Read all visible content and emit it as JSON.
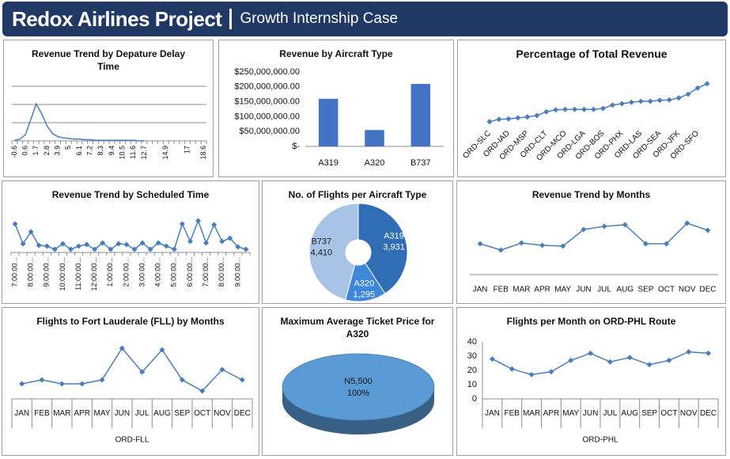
{
  "header": {
    "title": "Redox Airlines Project",
    "subtitle": "Growth Internship Case"
  },
  "chart_data": [
    {
      "type": "line",
      "title": "Revenue Trend by Depature Delay Time",
      "color": "#4a7ebb",
      "markers": false,
      "categories": [
        "-0.6",
        null,
        "0.6",
        null,
        "1.7",
        null,
        "2.8",
        null,
        "3.9",
        null,
        "5",
        null,
        "6.1",
        null,
        "7.2",
        null,
        "8.3",
        null,
        "9.4",
        null,
        "10.5",
        null,
        "11.6",
        null,
        "12.7",
        null,
        null,
        null,
        "14.9",
        null,
        null,
        null,
        "17",
        null,
        null,
        "18.6"
      ],
      "values": [
        1,
        3,
        10,
        35,
        61,
        45,
        25,
        12,
        7,
        5,
        4,
        3,
        3,
        2,
        2,
        1,
        1,
        1,
        1,
        1,
        1,
        1,
        1,
        0,
        0,
        null,
        null,
        null,
        null,
        null,
        null,
        null,
        null,
        null,
        null,
        null
      ],
      "ylim": [
        0,
        90
      ],
      "yticks": [
        30,
        60,
        90
      ],
      "grid": true,
      "ytick_labels": false
    },
    {
      "type": "bar",
      "title": "Revenue by Aircraft Type",
      "color": "#4472c4",
      "categories": [
        "A319",
        "A320",
        "B737"
      ],
      "values": [
        160000000,
        55000000,
        210000000
      ],
      "ylim": [
        0,
        250000000
      ],
      "yticks": [
        {
          "value": 0,
          "label": "$-"
        },
        {
          "value": 50000000,
          "label": "$50,000,000.00"
        },
        {
          "value": 100000000,
          "label": "$100,000,000.00"
        },
        {
          "value": 150000000,
          "label": "$150,000,000.00"
        },
        {
          "value": 200000000,
          "label": "$200,000,000.00"
        },
        {
          "value": 250000000,
          "label": "$250,000,000.00"
        }
      ],
      "grid": false
    },
    {
      "type": "line",
      "title": "Percentage of Total Revenue",
      "color": "#4a7ebb",
      "markers": true,
      "categories": [
        "ORD-SLC",
        null,
        "ORD-IAD",
        null,
        "ORD-MSP",
        null,
        "ORD-CLT",
        null,
        "ORD-MCO",
        null,
        "ORD-LGA",
        null,
        "ORD-BOS",
        null,
        "ORD-PHX",
        null,
        "ORD-LAS",
        null,
        "ORD-SEA",
        null,
        "ORD-JFK",
        null,
        "ORD-SFO",
        null
      ],
      "values": [
        1.2,
        1.7,
        1.8,
        2.0,
        2.2,
        2.5,
        3.3,
        3.7,
        3.8,
        3.8,
        3.8,
        3.8,
        4.0,
        4.7,
        5.0,
        5.3,
        5.5,
        5.5,
        5.7,
        5.8,
        6.2,
        7.0,
        8.3,
        9.2
      ],
      "ylim": [
        0,
        10
      ]
    },
    {
      "type": "line",
      "title": "Revenue Trend by Scheduled Time",
      "color": "#4a7ebb",
      "markers": true,
      "categories": [
        "7:00:00...",
        null,
        "8:00:00...",
        null,
        "9:00:00...",
        null,
        "10:00:00...",
        null,
        "11:00:00...",
        null,
        "12:00:00...",
        null,
        "1:00:00...",
        null,
        "2:00:00...",
        null,
        "3:00:00...",
        null,
        "4:00:00...",
        null,
        "5:00:00...",
        null,
        "6:00:00...",
        null,
        "7:00:00...",
        null,
        "8:00:00...",
        null,
        "9:00:00...",
        null
      ],
      "values": [
        36,
        11,
        26,
        9,
        8,
        4,
        11,
        4,
        8,
        10,
        4,
        12,
        4,
        11,
        10,
        4,
        12,
        4,
        12,
        8,
        4,
        36,
        14,
        40,
        12,
        35,
        14,
        18,
        7,
        4
      ],
      "ylim": [
        0,
        45
      ]
    },
    {
      "type": "doughnut",
      "title": "No. of Flights per Aircraft Type",
      "categories": [
        "A319",
        "A320",
        "B737"
      ],
      "values": [
        3931,
        1295,
        4410
      ],
      "value_labels": [
        "3,931",
        "1,295",
        "4,410"
      ],
      "colors": [
        "#2f6eb5",
        "#3f87d8",
        "#a7c4e6"
      ]
    },
    {
      "type": "line",
      "title": "Revenue Trend by Months",
      "color": "#4a7ebb",
      "markers": true,
      "categories": [
        "JAN",
        "FEB",
        "MAR",
        "APR",
        "MAY",
        "JUN",
        "JUL",
        "AUG",
        "SEP",
        "OCT",
        "NOV",
        "DEC"
      ],
      "values": [
        39,
        31,
        40,
        37,
        36,
        57,
        61,
        63,
        39,
        39,
        65,
        56
      ],
      "ylim": [
        0,
        80
      ]
    },
    {
      "type": "line",
      "title": "Flights to Fort Lauderale (FLL) by Months",
      "color": "#4a7ebb",
      "markers": true,
      "categories": [
        "JAN",
        "FEB",
        "MAR",
        "APR",
        "MAY",
        "JUN",
        "JUL",
        "AUG",
        "SEP",
        "OCT",
        "NOV",
        "DEC"
      ],
      "values": [
        19,
        24,
        19,
        19,
        24,
        64,
        34,
        62,
        24,
        10,
        37,
        24
      ],
      "ylim": [
        0,
        80
      ],
      "axis_title": "ORD-FLL"
    },
    {
      "type": "pie3d",
      "title": "Maximum  Average Ticket Price for A320",
      "values": [
        5500
      ],
      "value_labels": [
        "N5,500"
      ],
      "percent_labels": [
        "100%"
      ],
      "colors": [
        "#5b9bd5"
      ]
    },
    {
      "type": "line",
      "title": "Flights per Month on ORD-PHL Route",
      "color": "#4a7ebb",
      "markers": true,
      "categories": [
        "JAN",
        "FEB",
        "MAR",
        "APR",
        "MAY",
        "JUN",
        "JUL",
        "AUG",
        "SEP",
        "OCT",
        "NOV",
        "DEC"
      ],
      "values": [
        28,
        21,
        17,
        19,
        27,
        32,
        26,
        29,
        24,
        27,
        33,
        32
      ],
      "ylim": [
        0,
        40
      ],
      "yticks": [
        0,
        10,
        20,
        30,
        40
      ],
      "grid": false,
      "axis_title": "ORD-PHL"
    }
  ]
}
